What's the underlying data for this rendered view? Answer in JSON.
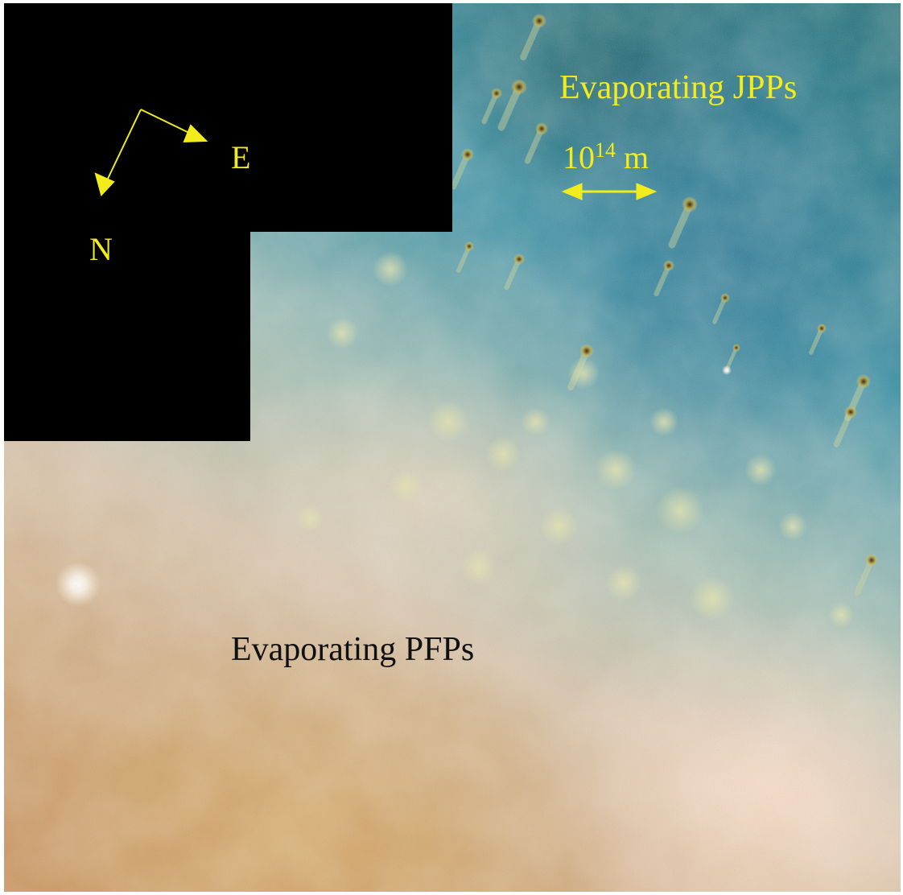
{
  "image": {
    "labels": {
      "jpps": "Evaporating JPPs",
      "pfps": "Evaporating PFPs",
      "scale_base": "10",
      "scale_exponent": "14",
      "scale_unit": "m",
      "east": "E",
      "north": "N"
    },
    "colors": {
      "annotation": "#f2ec1c",
      "pfps_text": "#101010",
      "mask": "#000000"
    }
  }
}
